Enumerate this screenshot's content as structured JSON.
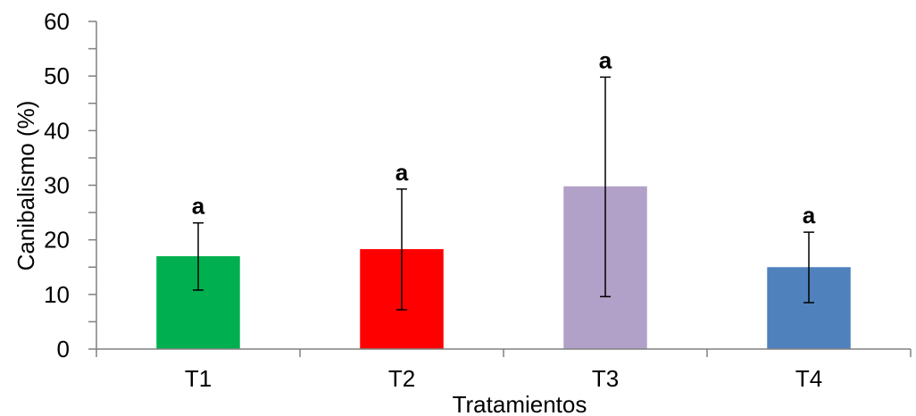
{
  "chart_data": {
    "type": "bar",
    "title": "",
    "xlabel": "Tratamientos",
    "ylabel": "Canibalismo (%)",
    "ylim": [
      0,
      60
    ],
    "yticks": [
      0,
      10,
      20,
      30,
      40,
      50,
      60
    ],
    "grid": false,
    "legend": "none",
    "categories": [
      "T1",
      "T2",
      "T3",
      "T4"
    ],
    "values": [
      17.0,
      18.3,
      29.8,
      15.0
    ],
    "error_low": [
      10.8,
      7.2,
      9.6,
      8.5
    ],
    "error_high": [
      23.1,
      29.3,
      49.8,
      21.4
    ],
    "significance_labels": [
      "a",
      "a",
      "a",
      "a"
    ],
    "bar_colors": [
      "#00b050",
      "#ff0000",
      "#b1a0c7",
      "#4f81bd"
    ]
  }
}
